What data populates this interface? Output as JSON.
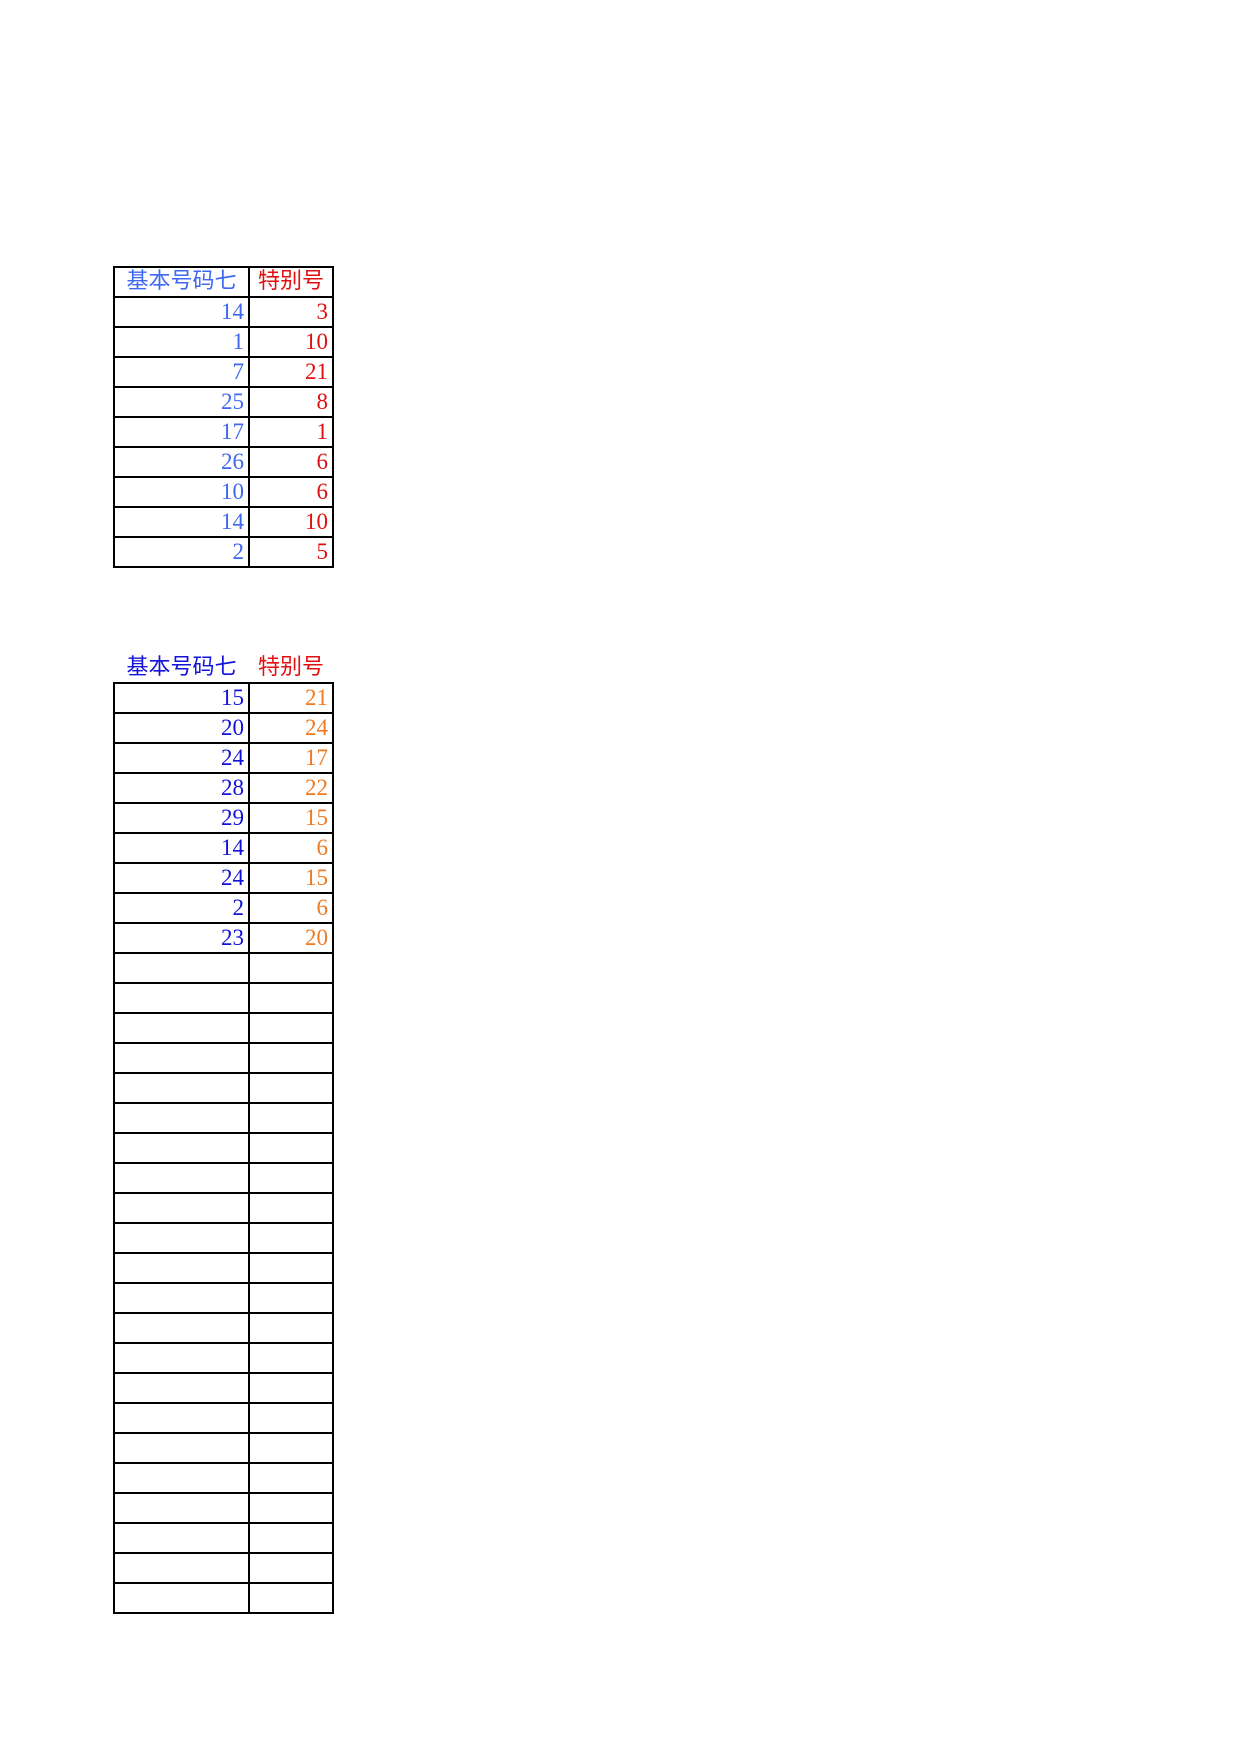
{
  "tables": [
    {
      "header": [
        "基本号码七",
        "特别号"
      ],
      "rows": [
        [
          14,
          3
        ],
        [
          1,
          10
        ],
        [
          7,
          21
        ],
        [
          25,
          8
        ],
        [
          17,
          1
        ],
        [
          26,
          6
        ],
        [
          10,
          6
        ],
        [
          14,
          10
        ],
        [
          2,
          5
        ]
      ]
    },
    {
      "header": [
        "基本号码七",
        "特别号"
      ],
      "rows": [
        [
          15,
          21
        ],
        [
          20,
          24
        ],
        [
          24,
          17
        ],
        [
          28,
          22
        ],
        [
          29,
          15
        ],
        [
          14,
          6
        ],
        [
          24,
          15
        ],
        [
          2,
          6
        ],
        [
          23,
          20
        ]
      ]
    }
  ]
}
